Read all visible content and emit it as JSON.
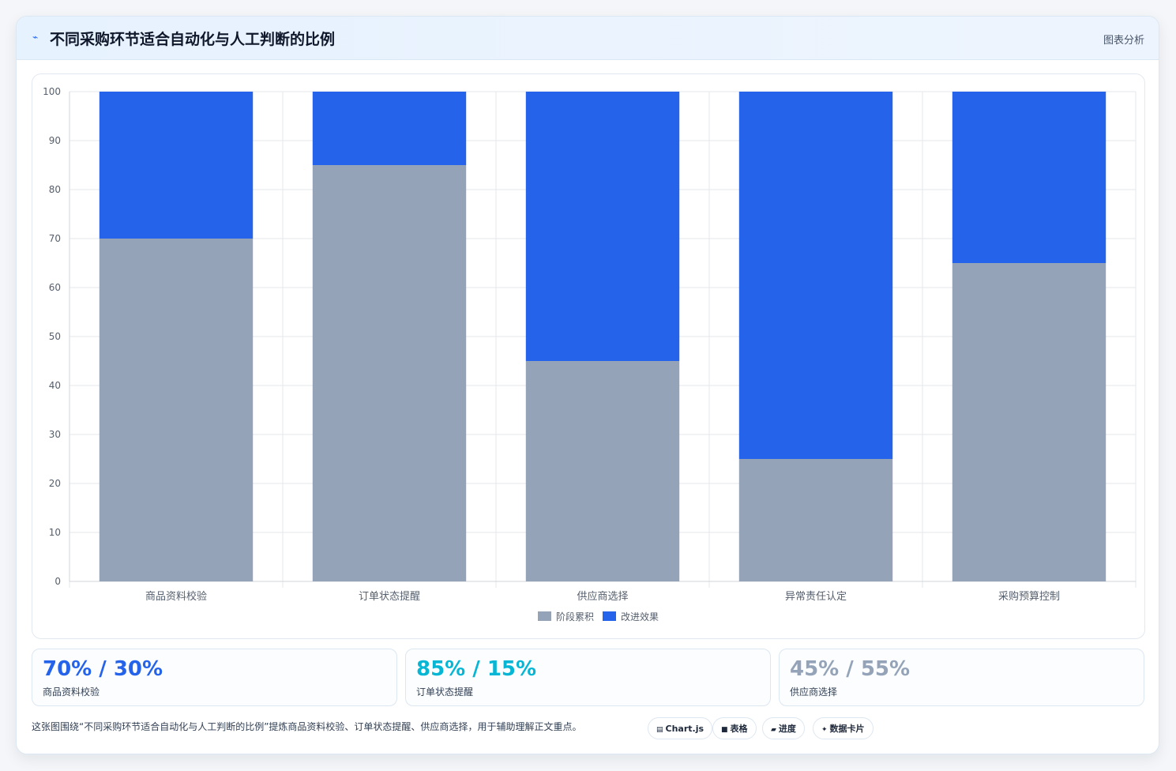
{
  "header": {
    "icon": "chart-line-icon",
    "title": "不同采购环节适合自动化与人工判断的比例",
    "tag": "图表分析"
  },
  "colors": {
    "series_a": "#94a3b8",
    "series_b": "#2563eb",
    "accent_blue": "#2563eb",
    "accent_cyan": "#06b6d4",
    "accent_gray": "#94a3b8"
  },
  "chart_data": {
    "type": "bar",
    "stacked": true,
    "categories": [
      "商品资料校验",
      "订单状态提醒",
      "供应商选择",
      "异常责任认定",
      "采购预算控制"
    ],
    "series": [
      {
        "name": "阶段累积",
        "values": [
          70,
          85,
          45,
          25,
          65
        ]
      },
      {
        "name": "改进效果",
        "values": [
          30,
          15,
          55,
          75,
          35
        ]
      }
    ],
    "ylim": [
      0,
      100
    ],
    "yticks": [
      0,
      10,
      20,
      30,
      40,
      50,
      60,
      70,
      80,
      90,
      100
    ],
    "grid": true,
    "legend": "bottom"
  },
  "stats": [
    {
      "value": "70% / 30%",
      "label": "商品资料校验"
    },
    {
      "value": "85% / 15%",
      "label": "订单状态提醒"
    },
    {
      "value": "45% / 55%",
      "label": "供应商选择"
    }
  ],
  "footnote": "这张图围绕“不同采购环节适合自动化与人工判断的比例”提炼商品资料校验、订单状态提醒、供应商选择，用于辅助理解正文重点。",
  "badges": [
    {
      "icon": "chart-icon",
      "glyph": "▤",
      "label": "Chart.js"
    },
    {
      "icon": "table-icon",
      "glyph": "■",
      "label": "表格"
    },
    {
      "icon": "progress-icon",
      "glyph": "▰",
      "label": "进度"
    },
    {
      "icon": "data-card-icon",
      "glyph": "✦",
      "label": "数据卡片"
    }
  ]
}
